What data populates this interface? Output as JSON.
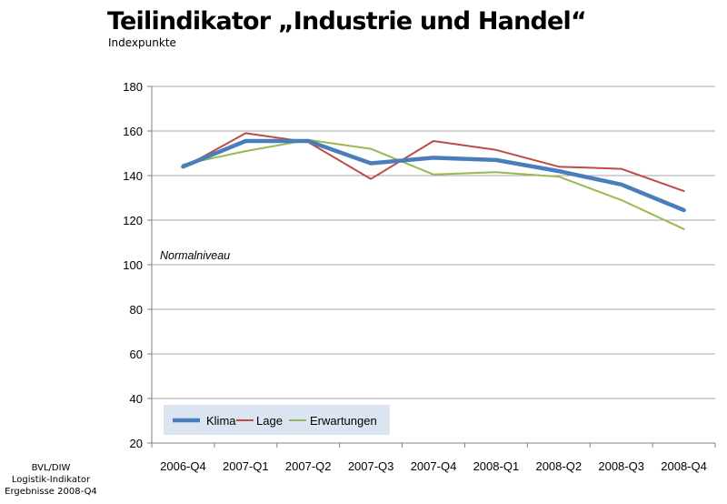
{
  "header": {
    "title": "Teilindikator „Industrie und Handel“",
    "subtitle": "Indexpunkte"
  },
  "footer": {
    "line1": "BVL/DIW",
    "line2": "Logistik-Indikator",
    "line3": "Ergebnisse 2008-Q4"
  },
  "colors": {
    "klima": "#4a7ebb",
    "lage": "#be4b48",
    "erwartungen": "#98b954",
    "grid": "#a6a6a6",
    "legend_bg": "#dbe5f1"
  },
  "chart_data": {
    "type": "line",
    "categories": [
      "2006-Q4",
      "2007-Q1",
      "2007-Q2",
      "2007-Q3",
      "2007-Q4",
      "2008-Q1",
      "2008-Q2",
      "2008-Q3",
      "2008-Q4"
    ],
    "series": [
      {
        "name": "Klima",
        "values": [
          144,
          155.5,
          155.5,
          145.5,
          148,
          147,
          142,
          136,
          124.5
        ]
      },
      {
        "name": "Lage",
        "values": [
          143.5,
          159,
          155,
          138.5,
          155.5,
          151.5,
          144,
          143,
          133
        ]
      },
      {
        "name": "Erwartungen",
        "values": [
          145,
          151,
          156,
          152,
          140.5,
          141.5,
          139.5,
          129,
          116
        ]
      }
    ],
    "ylim": [
      20,
      180
    ],
    "yticks": [
      "20",
      "40",
      "60",
      "80",
      "100",
      "120",
      "140",
      "160",
      "180"
    ],
    "annotation": "Normalniveau",
    "grid": true,
    "legend_position": "bottom-left"
  }
}
